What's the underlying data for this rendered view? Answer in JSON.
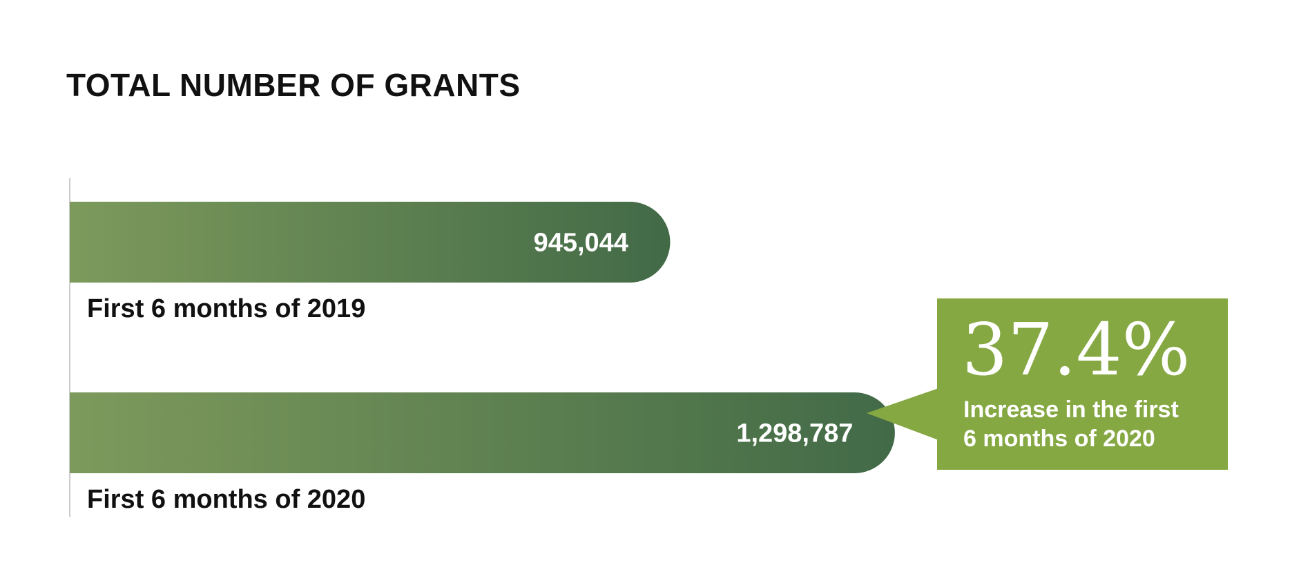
{
  "chart_data": {
    "type": "bar",
    "orientation": "horizontal",
    "title": "TOTAL NUMBER OF GRANTS",
    "categories": [
      "First 6 months of 2019",
      "First 6 months of 2020"
    ],
    "values": [
      945044,
      1298787
    ],
    "value_labels": [
      "945,044",
      "1,298,787"
    ],
    "xlim": [
      0,
      1300000
    ],
    "grid": false,
    "legend": "none",
    "annotation": {
      "value": "37.4%",
      "text_lines": [
        "Increase in the first",
        "6 months of 2020"
      ],
      "points_to": "First 6 months of 2020"
    }
  },
  "colors": {
    "bar_start": "#7d9a5c",
    "bar_end": "#426a47",
    "callout_bg": "#86a843",
    "axis_line": "#cccccc"
  }
}
